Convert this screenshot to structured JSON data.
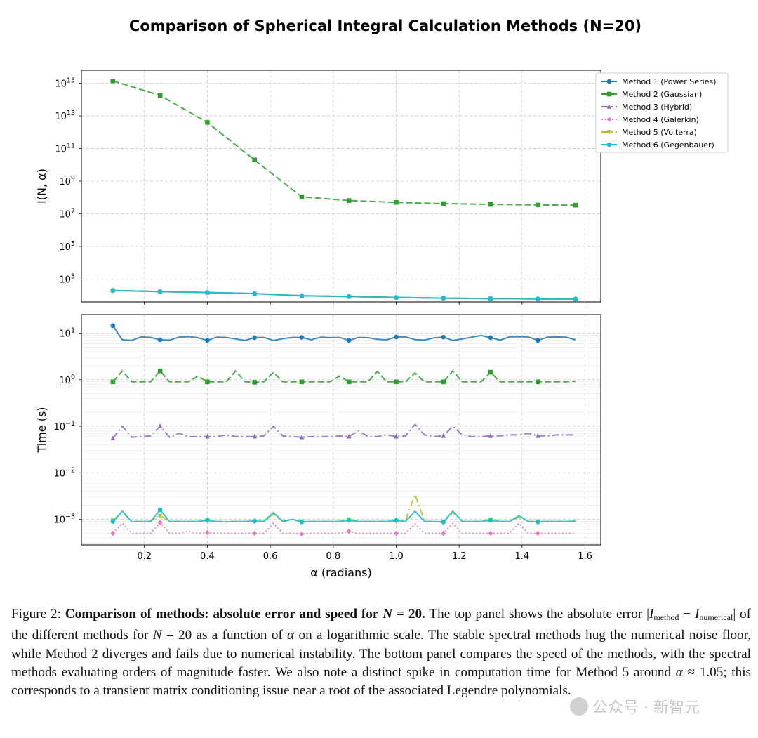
{
  "figure": {
    "title": "Comparison of Spherical Integral Calculation Methods (N=20)"
  },
  "chart_data": [
    {
      "type": "line",
      "panel": "top",
      "ylabel": "I(N, α)",
      "xlabel": "",
      "yscale": "log",
      "ylim_exp": [
        1.6,
        15.8
      ],
      "xlim": [
        0.0,
        1.65
      ],
      "yticks": [
        {
          "exp": 3,
          "label": "10^3"
        },
        {
          "exp": 5,
          "label": "10^5"
        },
        {
          "exp": 7,
          "label": "10^7"
        },
        {
          "exp": 9,
          "label": "10^9"
        },
        {
          "exp": 11,
          "label": "10^11"
        },
        {
          "exp": 13,
          "label": "10^13"
        },
        {
          "exp": 15,
          "label": "10^15"
        }
      ],
      "xticks": [
        "0.2",
        "0.4",
        "0.6",
        "0.8",
        "1.0",
        "1.2",
        "1.4",
        "1.6"
      ],
      "grid": true,
      "legend_position": "outside-right",
      "series": [
        {
          "name": "Method 1 (Power Series)",
          "color": "#1f77b4",
          "dash": "solid",
          "marker": "circle",
          "x": [
            0.1,
            0.25,
            0.4,
            0.55,
            0.7,
            0.85,
            1.0,
            1.15,
            1.3,
            1.45,
            1.57
          ],
          "y": [
            200,
            170,
            150,
            130,
            95,
            85,
            75,
            68,
            64,
            61,
            60
          ]
        },
        {
          "name": "Method 2 (Gaussian)",
          "color": "#2ca02c",
          "dash": "dashed",
          "marker": "square",
          "x": [
            0.1,
            0.25,
            0.4,
            0.55,
            0.7,
            0.85,
            1.0,
            1.15,
            1.3,
            1.45,
            1.57
          ],
          "y": [
            1400000000000000.0,
            180000000000000.0,
            4000000000000.0,
            20000000000.0,
            110000000.0,
            65000000.0,
            50000000.0,
            42000000.0,
            38000000.0,
            35000000.0,
            34000000.0
          ]
        },
        {
          "name": "Method 3 (Hybrid)",
          "color": "#9467bd",
          "dash": "dashdot",
          "marker": "triangle-up",
          "x": [
            0.1,
            0.25,
            0.4,
            0.55,
            0.7,
            0.85,
            1.0,
            1.15,
            1.3,
            1.45,
            1.57
          ],
          "y": [
            200,
            170,
            150,
            130,
            95,
            85,
            75,
            68,
            64,
            61,
            60
          ]
        },
        {
          "name": "Method 4 (Galerkin)",
          "color": "#e377c2",
          "dash": "dotted",
          "marker": "diamond",
          "x": [
            0.1,
            0.25,
            0.4,
            0.55,
            0.7,
            0.85,
            1.0,
            1.15,
            1.3,
            1.45,
            1.57
          ],
          "y": [
            200,
            170,
            150,
            130,
            95,
            85,
            75,
            68,
            64,
            61,
            60
          ]
        },
        {
          "name": "Method 5 (Volterra)",
          "color": "#bcbd22",
          "dash": "dashdot",
          "marker": "triangle-down",
          "x": [
            0.1,
            0.25,
            0.4,
            0.55,
            0.7,
            0.85,
            1.0,
            1.15,
            1.3,
            1.45,
            1.57
          ],
          "y": [
            200,
            170,
            150,
            130,
            95,
            85,
            75,
            68,
            64,
            61,
            60
          ]
        },
        {
          "name": "Method 6 (Gegenbauer)",
          "color": "#17becf",
          "dash": "solid",
          "marker": "circle",
          "x": [
            0.1,
            0.25,
            0.4,
            0.55,
            0.7,
            0.85,
            1.0,
            1.15,
            1.3,
            1.45,
            1.57
          ],
          "y": [
            200,
            170,
            150,
            130,
            95,
            85,
            75,
            68,
            64,
            61,
            60
          ]
        }
      ]
    },
    {
      "type": "line",
      "panel": "bottom",
      "ylabel": "Time (s)",
      "xlabel": "α (radians)",
      "yscale": "log",
      "ylim_exp": [
        -3.55,
        1.4
      ],
      "xlim": [
        0.0,
        1.65
      ],
      "yticks": [
        {
          "exp": -3,
          "label": "10^-3"
        },
        {
          "exp": -2,
          "label": "10^-2"
        },
        {
          "exp": -1,
          "label": "10^-1"
        },
        {
          "exp": 0,
          "label": "10^0"
        },
        {
          "exp": 1,
          "label": "10^1"
        }
      ],
      "xticks": [
        "0.2",
        "0.4",
        "0.6",
        "0.8",
        "1.0",
        "1.2",
        "1.4",
        "1.6"
      ],
      "grid": true,
      "series": [
        {
          "name": "Method 1 (Power Series)",
          "color": "#1f77b4",
          "dash": "solid",
          "marker": "circle",
          "x": [
            0.1,
            0.13,
            0.16,
            0.19,
            0.22,
            0.25,
            0.28,
            0.31,
            0.34,
            0.37,
            0.4,
            0.43,
            0.46,
            0.49,
            0.52,
            0.55,
            0.58,
            0.61,
            0.64,
            0.67,
            0.7,
            0.73,
            0.76,
            0.79,
            0.82,
            0.85,
            0.88,
            0.91,
            0.94,
            0.97,
            1.0,
            1.03,
            1.06,
            1.09,
            1.12,
            1.15,
            1.18,
            1.21,
            1.24,
            1.27,
            1.3,
            1.33,
            1.36,
            1.39,
            1.42,
            1.45,
            1.48,
            1.51,
            1.54,
            1.57
          ],
          "y": [
            14.5,
            7.2,
            7.0,
            8.3,
            8.1,
            7.2,
            7.1,
            8.2,
            8.4,
            8.0,
            7.0,
            8.2,
            8.1,
            7.5,
            7.0,
            8.0,
            8.1,
            7.0,
            7.6,
            8.1,
            8.1,
            7.2,
            8.2,
            8.0,
            8.1,
            7.0,
            8.1,
            8.0,
            7.4,
            7.2,
            8.3,
            8.3,
            7.3,
            7.1,
            7.9,
            8.2,
            7.0,
            7.5,
            8.2,
            8.9,
            8.0,
            7.1,
            8.3,
            8.4,
            8.3,
            7.0,
            8.2,
            8.3,
            8.2,
            7.2
          ]
        },
        {
          "name": "Method 2 (Gaussian)",
          "color": "#2ca02c",
          "dash": "dashed",
          "marker": "square",
          "x": [
            0.1,
            0.13,
            0.16,
            0.19,
            0.22,
            0.25,
            0.28,
            0.31,
            0.34,
            0.37,
            0.4,
            0.43,
            0.46,
            0.49,
            0.52,
            0.55,
            0.58,
            0.61,
            0.64,
            0.67,
            0.7,
            0.73,
            0.76,
            0.79,
            0.82,
            0.85,
            0.88,
            0.91,
            0.94,
            0.97,
            1.0,
            1.03,
            1.06,
            1.09,
            1.12,
            1.15,
            1.18,
            1.21,
            1.24,
            1.27,
            1.3,
            1.33,
            1.36,
            1.39,
            1.42,
            1.45,
            1.48,
            1.51,
            1.54,
            1.57
          ],
          "y": [
            0.9,
            1.55,
            0.9,
            0.9,
            0.9,
            1.55,
            0.9,
            0.9,
            0.9,
            1.2,
            0.9,
            0.9,
            0.9,
            1.55,
            0.9,
            0.88,
            0.9,
            1.45,
            0.9,
            0.9,
            0.9,
            0.9,
            0.9,
            0.9,
            1.2,
            0.9,
            0.9,
            0.9,
            1.5,
            0.9,
            0.9,
            0.9,
            1.4,
            0.9,
            0.9,
            0.9,
            1.55,
            0.9,
            0.9,
            0.9,
            1.45,
            0.9,
            0.9,
            0.9,
            0.9,
            0.9,
            0.9,
            0.9,
            0.9,
            0.92
          ]
        },
        {
          "name": "Method 3 (Hybrid)",
          "color": "#9467bd",
          "dash": "dashdot",
          "marker": "triangle-up",
          "x": [
            0.1,
            0.13,
            0.16,
            0.19,
            0.22,
            0.25,
            0.28,
            0.31,
            0.34,
            0.37,
            0.4,
            0.43,
            0.46,
            0.49,
            0.52,
            0.55,
            0.58,
            0.61,
            0.64,
            0.67,
            0.7,
            0.73,
            0.76,
            0.79,
            0.82,
            0.85,
            0.88,
            0.91,
            0.94,
            0.97,
            1.0,
            1.03,
            1.06,
            1.09,
            1.12,
            1.15,
            1.18,
            1.21,
            1.24,
            1.27,
            1.3,
            1.33,
            1.36,
            1.39,
            1.42,
            1.45,
            1.48,
            1.51,
            1.54,
            1.57
          ],
          "y": [
            0.055,
            0.1,
            0.058,
            0.06,
            0.062,
            0.1,
            0.058,
            0.07,
            0.06,
            0.06,
            0.06,
            0.06,
            0.065,
            0.06,
            0.06,
            0.06,
            0.062,
            0.1,
            0.062,
            0.06,
            0.058,
            0.06,
            0.06,
            0.06,
            0.062,
            0.06,
            0.08,
            0.06,
            0.06,
            0.065,
            0.06,
            0.062,
            0.11,
            0.065,
            0.06,
            0.062,
            0.1,
            0.065,
            0.06,
            0.06,
            0.062,
            0.062,
            0.065,
            0.065,
            0.07,
            0.062,
            0.062,
            0.065,
            0.065,
            0.065
          ]
        },
        {
          "name": "Method 4 (Galerkin)",
          "color": "#e377c2",
          "dash": "dotted",
          "marker": "diamond",
          "x": [
            0.1,
            0.13,
            0.16,
            0.19,
            0.22,
            0.25,
            0.28,
            0.31,
            0.34,
            0.37,
            0.4,
            0.43,
            0.46,
            0.49,
            0.52,
            0.55,
            0.58,
            0.61,
            0.64,
            0.67,
            0.7,
            0.73,
            0.76,
            0.79,
            0.82,
            0.85,
            0.88,
            0.91,
            0.94,
            0.97,
            1.0,
            1.03,
            1.06,
            1.09,
            1.12,
            1.15,
            1.18,
            1.21,
            1.24,
            1.27,
            1.3,
            1.33,
            1.36,
            1.39,
            1.42,
            1.45,
            1.48,
            1.51,
            1.54,
            1.57
          ],
          "y": [
            0.0005,
            0.00082,
            0.0005,
            0.0005,
            0.0005,
            0.00085,
            0.0005,
            0.0005,
            0.00055,
            0.0005,
            0.00052,
            0.0005,
            0.0005,
            0.0005,
            0.0005,
            0.0005,
            0.0005,
            0.00082,
            0.0005,
            0.0005,
            0.00048,
            0.0005,
            0.0005,
            0.0005,
            0.0005,
            0.00055,
            0.0005,
            0.0005,
            0.0005,
            0.0005,
            0.0005,
            0.0005,
            0.0008,
            0.0005,
            0.0005,
            0.0005,
            0.00082,
            0.0005,
            0.0005,
            0.0005,
            0.0005,
            0.0005,
            0.0005,
            0.00082,
            0.0005,
            0.0005,
            0.0005,
            0.0005,
            0.0005,
            0.0005
          ]
        },
        {
          "name": "Method 5 (Volterra)",
          "color": "#bcbd22",
          "dash": "dashdot",
          "marker": "triangle-down",
          "x": [
            0.1,
            0.13,
            0.16,
            0.19,
            0.22,
            0.25,
            0.28,
            0.31,
            0.34,
            0.37,
            0.4,
            0.43,
            0.46,
            0.49,
            0.52,
            0.55,
            0.58,
            0.61,
            0.64,
            0.67,
            0.7,
            0.73,
            0.76,
            0.79,
            0.82,
            0.85,
            0.88,
            0.91,
            0.94,
            0.97,
            1.0,
            1.03,
            1.06,
            1.09,
            1.12,
            1.15,
            1.18,
            1.21,
            1.24,
            1.27,
            1.3,
            1.33,
            1.36,
            1.39,
            1.42,
            1.45,
            1.48,
            1.51,
            1.54,
            1.57
          ],
          "y": [
            0.00095,
            0.0014,
            0.00092,
            0.0009,
            0.00092,
            0.0012,
            0.0009,
            0.0009,
            0.0009,
            0.0009,
            0.00095,
            0.0009,
            0.0009,
            0.0009,
            0.0009,
            0.0009,
            0.0009,
            0.0013,
            0.0009,
            0.001,
            0.0009,
            0.0009,
            0.0009,
            0.0009,
            0.0009,
            0.001,
            0.0009,
            0.0009,
            0.0009,
            0.0009,
            0.00092,
            0.00095,
            0.0034,
            0.0009,
            0.0009,
            0.00085,
            0.0014,
            0.0009,
            0.0009,
            0.0009,
            0.001,
            0.0009,
            0.0009,
            0.0011,
            0.0009,
            0.0009,
            0.0009,
            0.0009,
            0.0009,
            0.0009
          ]
        },
        {
          "name": "Method 6 (Gegenbauer)",
          "color": "#17becf",
          "dash": "solid",
          "marker": "circle",
          "x": [
            0.1,
            0.13,
            0.16,
            0.19,
            0.22,
            0.25,
            0.28,
            0.31,
            0.34,
            0.37,
            0.4,
            0.43,
            0.46,
            0.49,
            0.52,
            0.55,
            0.58,
            0.61,
            0.64,
            0.67,
            0.7,
            0.73,
            0.76,
            0.79,
            0.82,
            0.85,
            0.88,
            0.91,
            0.94,
            0.97,
            1.0,
            1.03,
            1.06,
            1.09,
            1.12,
            1.15,
            1.18,
            1.21,
            1.24,
            1.27,
            1.3,
            1.33,
            1.36,
            1.39,
            1.42,
            1.45,
            1.48,
            1.51,
            1.54,
            1.57
          ],
          "y": [
            0.0009,
            0.0015,
            0.00088,
            0.0009,
            0.0009,
            0.0016,
            0.0009,
            0.0009,
            0.0009,
            0.0009,
            0.00095,
            0.0009,
            0.00088,
            0.0009,
            0.0009,
            0.00092,
            0.0009,
            0.0014,
            0.0009,
            0.001,
            0.00088,
            0.0009,
            0.0009,
            0.0009,
            0.0009,
            0.00095,
            0.0009,
            0.0009,
            0.0009,
            0.0009,
            0.00095,
            0.0009,
            0.0015,
            0.0009,
            0.0009,
            0.00088,
            0.0015,
            0.0009,
            0.0009,
            0.0009,
            0.00095,
            0.0009,
            0.0009,
            0.0012,
            0.0009,
            0.00088,
            0.0009,
            0.0009,
            0.0009,
            0.00092
          ]
        }
      ]
    }
  ],
  "caption": {
    "label": "Figure 2:",
    "bold": "Comparison of methods: absolute error and speed for",
    "bold_math": "N",
    "bold_eq": "= 20.",
    "p1": "The top panel shows the absolute error |",
    "I": "I",
    "sub_method": "method",
    "minus": " − ",
    "sub_numerical": "numerical",
    "p2": "| of the different methods for",
    "N": "N",
    "p3": "= 20 as a function of",
    "alpha": "α",
    "p4": "on a logarithmic scale.  The stable spectral methods hug the numerical noise floor, while Method 2 diverges and fails due to numerical instability. The bottom panel compares the speed of the methods, with the spectral methods evaluating orders of magnitude faster.  We also note a distinct spike in computation time for Method 5 around",
    "p5": "≈ 1.05; this corresponds to a transient matrix conditioning issue near a root of the associated Legendre polynomials."
  },
  "watermark": {
    "text": "公众号 · 新智元"
  }
}
